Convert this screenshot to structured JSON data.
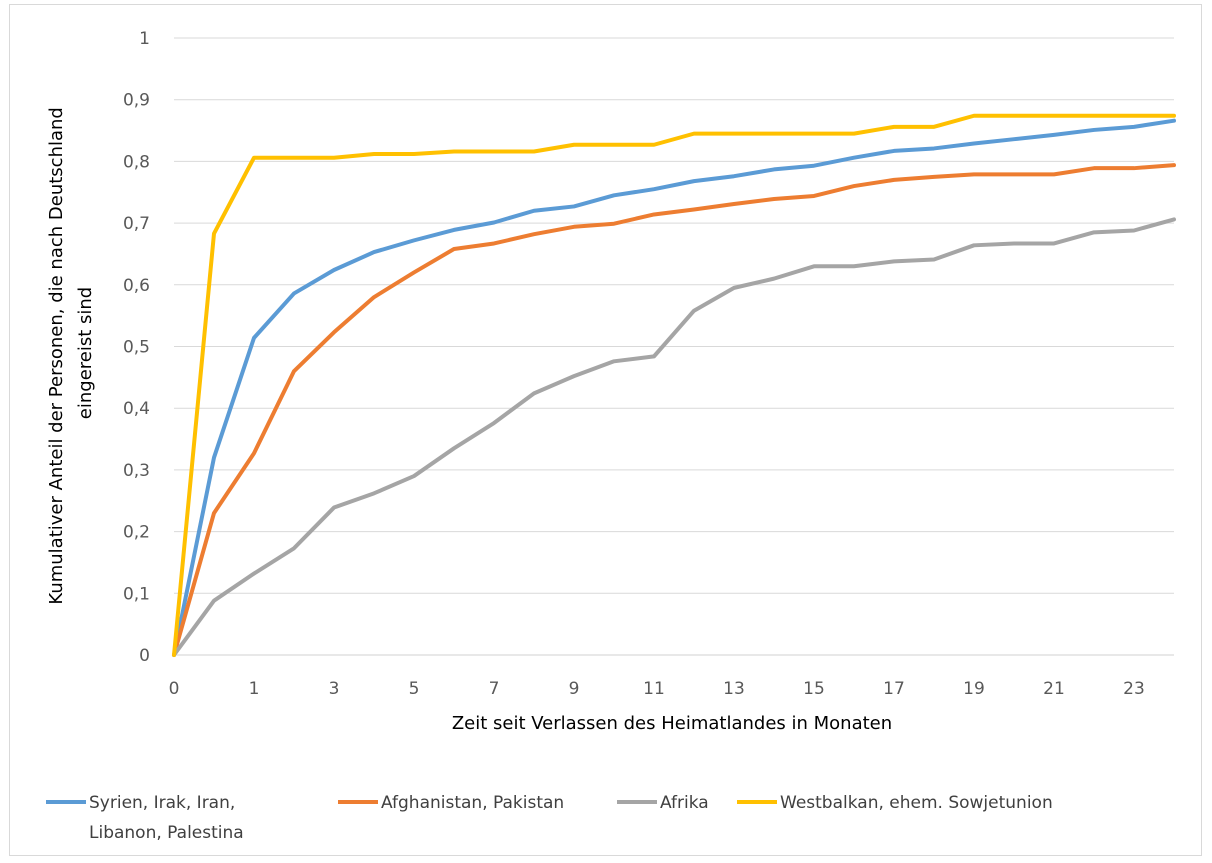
{
  "chart_data": {
    "type": "line",
    "title": "",
    "xlabel": "Zeit seit Verlassen des Heimatlandes in Monaten",
    "ylabel_lines": [
      "Kumulativer Anteil der Personen, die nach Deutschland",
      "eingereist sind"
    ],
    "x": [
      0,
      1,
      2,
      3,
      4,
      5,
      6,
      7,
      8,
      9,
      10,
      11,
      12,
      13,
      14,
      15,
      16,
      17,
      18,
      19,
      20,
      21,
      22,
      23,
      24,
      25
    ],
    "x_tick_labels": [
      "0",
      "1",
      "3",
      "5",
      "7",
      "9",
      "11",
      "13",
      "15",
      "17",
      "19",
      "21",
      "23"
    ],
    "x_tick_values": [
      0,
      2,
      4,
      6,
      8,
      10,
      12,
      14,
      16,
      18,
      20,
      22,
      24
    ],
    "y_tick_labels": [
      "0",
      "0,1",
      "0,2",
      "0,3",
      "0,4",
      "0,5",
      "0,6",
      "0,7",
      "0,8",
      "0,9",
      "1"
    ],
    "y_tick_values": [
      0,
      0.1,
      0.2,
      0.3,
      0.4,
      0.5,
      0.6,
      0.7,
      0.8,
      0.9,
      1
    ],
    "xlim": [
      0,
      25
    ],
    "ylim": [
      0,
      1
    ],
    "grid": "horizontal",
    "legend_position": "bottom",
    "series": [
      {
        "name_lines": [
          "Syrien, Irak, Iran,",
          "Libanon, Palestina"
        ],
        "color": "#5b9bd5",
        "values": [
          0,
          0.32,
          0.514,
          0.586,
          0.624,
          0.653,
          0.672,
          0.689,
          0.701,
          0.72,
          0.727,
          0.745,
          0.755,
          0.768,
          0.776,
          0.787,
          0.793,
          0.806,
          0.817,
          0.821,
          0.829,
          0.836,
          0.843,
          0.851,
          0.856,
          0.866
        ]
      },
      {
        "name_lines": [
          "Afghanistan, Pakistan"
        ],
        "color": "#ed7d31",
        "values": [
          0,
          0.23,
          0.327,
          0.46,
          0.523,
          0.58,
          0.62,
          0.658,
          0.667,
          0.682,
          0.694,
          0.699,
          0.714,
          0.722,
          0.731,
          0.739,
          0.744,
          0.76,
          0.77,
          0.775,
          0.779,
          0.779,
          0.779,
          0.789,
          0.789,
          0.794
        ]
      },
      {
        "name_lines": [
          "Afrika"
        ],
        "color": "#a5a5a5",
        "values": [
          0,
          0.088,
          0.132,
          0.173,
          0.239,
          0.262,
          0.29,
          0.335,
          0.376,
          0.424,
          0.452,
          0.476,
          0.484,
          0.558,
          0.595,
          0.61,
          0.63,
          0.63,
          0.638,
          0.641,
          0.664,
          0.667,
          0.667,
          0.685,
          0.688,
          0.706
        ]
      },
      {
        "name_lines": [
          "Westbalkan, ehem. Sowjetunion"
        ],
        "color": "#ffc000",
        "values": [
          0,
          0.683,
          0.806,
          0.806,
          0.806,
          0.812,
          0.812,
          0.816,
          0.816,
          0.816,
          0.827,
          0.827,
          0.827,
          0.845,
          0.845,
          0.845,
          0.845,
          0.845,
          0.856,
          0.856,
          0.874,
          0.874,
          0.874,
          0.874,
          0.874,
          0.874
        ]
      }
    ]
  }
}
